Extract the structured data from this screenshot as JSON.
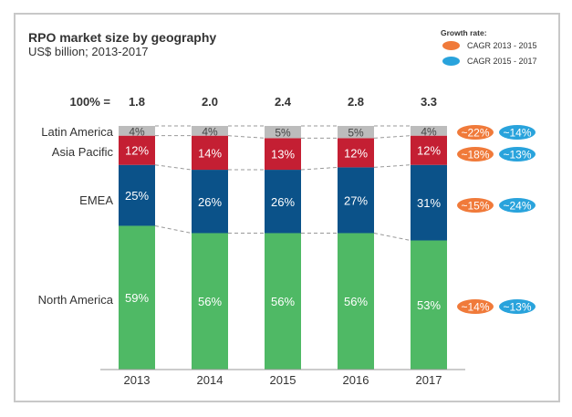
{
  "chart_data": {
    "type": "bar",
    "stacked": true,
    "title": "RPO market size by geography",
    "subtitle": "US$ billion; 2013-2017",
    "total_label_prefix": "100% =",
    "categories": [
      "2013",
      "2014",
      "2015",
      "2016",
      "2017"
    ],
    "totals": [
      "1.8",
      "2.0",
      "2.4",
      "2.8",
      "3.3"
    ],
    "series": [
      {
        "name": "North America",
        "color": "#4fb965",
        "text_color": "#ffffff",
        "values": [
          59,
          56,
          56,
          56,
          53
        ]
      },
      {
        "name": "EMEA",
        "color": "#0b5289",
        "text_color": "#ffffff",
        "values": [
          25,
          26,
          26,
          27,
          31
        ]
      },
      {
        "name": "Asia Pacific",
        "color": "#c41f33",
        "text_color": "#ffffff",
        "values": [
          12,
          14,
          13,
          12,
          12
        ]
      },
      {
        "name": "Latin America",
        "color": "#bcbcbc",
        "text_color": "#444444",
        "values": [
          4,
          4,
          5,
          5,
          4
        ]
      }
    ],
    "value_suffix": "%",
    "ylim": [
      0,
      100
    ],
    "legend": {
      "title": "Growth rate:",
      "position": "top-right",
      "items": [
        {
          "label": "CAGR 2013 - 2015",
          "color": "#f07a3a"
        },
        {
          "label": "CAGR 2015 - 2017",
          "color": "#29a3dc"
        }
      ]
    },
    "growth_rates": [
      {
        "series": "Latin America",
        "cagr_2013_2015": "~22%",
        "cagr_2015_2017": "~14%"
      },
      {
        "series": "Asia Pacific",
        "cagr_2013_2015": "~18%",
        "cagr_2015_2017": "~13%"
      },
      {
        "series": "EMEA",
        "cagr_2013_2015": "~15%",
        "cagr_2015_2017": "~24%"
      },
      {
        "series": "North America",
        "cagr_2013_2015": "~14%",
        "cagr_2015_2017": "~13%"
      }
    ]
  }
}
